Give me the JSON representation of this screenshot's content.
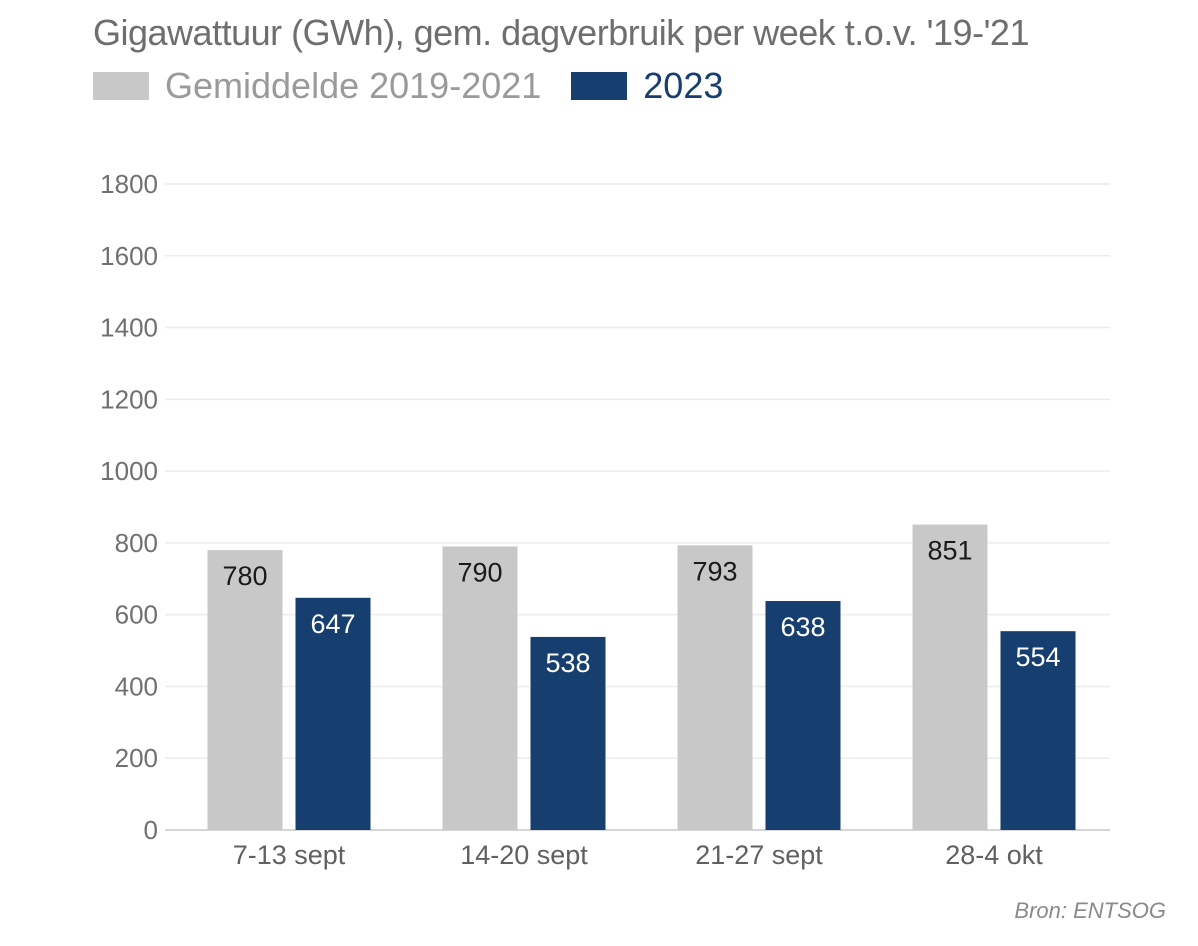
{
  "chart_data": {
    "type": "bar",
    "title": "Gigawattuur (GWh), gem. dagverbruik per week t.o.v. '19-'21",
    "xlabel": "",
    "ylabel": "",
    "categories": [
      "7-13 sept",
      "14-20 sept",
      "21-27 sept",
      "28-4 okt"
    ],
    "series": [
      {
        "name": "Gemiddelde 2019-2021",
        "values": [
          780,
          790,
          793,
          851
        ],
        "color": "#c8c8c8",
        "label_color": "#1a1a1a"
      },
      {
        "name": "2023",
        "values": [
          647,
          538,
          638,
          554
        ],
        "color": "#163e6e",
        "label_color": "#ffffff"
      }
    ],
    "ylim": [
      0,
      1800
    ],
    "yticks": [
      0,
      200,
      400,
      600,
      800,
      1000,
      1200,
      1400,
      1600,
      1800
    ],
    "grid": true,
    "legend": "top-left",
    "source": "Bron: ENTSOG"
  }
}
